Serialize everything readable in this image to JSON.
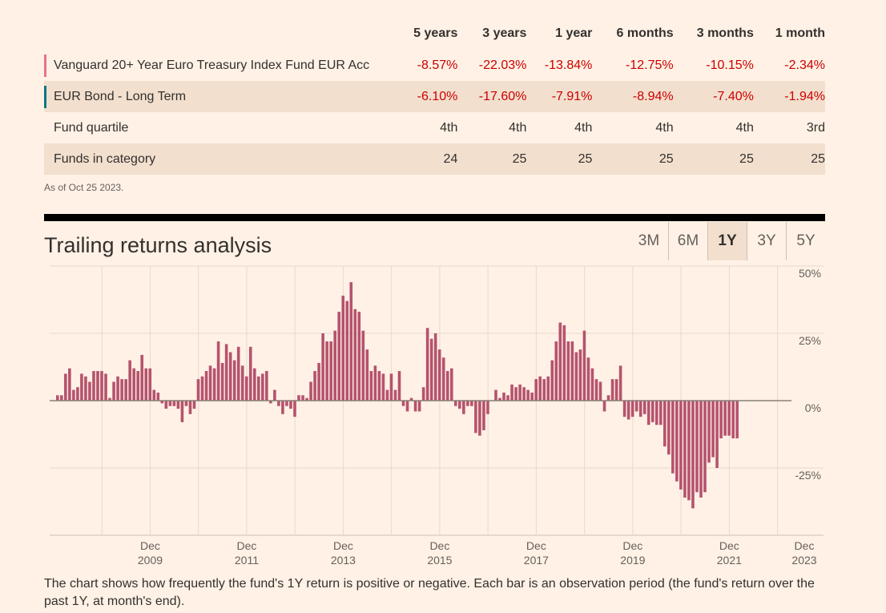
{
  "table": {
    "columns": [
      "5 years",
      "3 years",
      "1 year",
      "6 months",
      "3 months",
      "1 month"
    ],
    "rows": [
      {
        "label": "Vanguard 20+ Year Euro Treasury Index Fund EUR Acc",
        "values": [
          "-8.57%",
          "-22.03%",
          "-13.84%",
          "-12.75%",
          "-10.15%",
          "-2.34%"
        ],
        "marker_color": "#e9708b"
      },
      {
        "label": "EUR Bond - Long Term",
        "values": [
          "-6.10%",
          "-17.60%",
          "-7.91%",
          "-8.94%",
          "-7.40%",
          "-1.94%"
        ],
        "marker_color": "#0f5499"
      },
      {
        "label": "Fund quartile",
        "values": [
          "4th",
          "4th",
          "4th",
          "4th",
          "4th",
          "3rd"
        ]
      },
      {
        "label": "Funds in category",
        "values": [
          "24",
          "25",
          "25",
          "25",
          "25",
          "25"
        ]
      }
    ],
    "as_of": "As of Oct 25 2023."
  },
  "chart_section": {
    "title": "Trailing returns analysis",
    "tabs": [
      {
        "label": "3M",
        "active": false
      },
      {
        "label": "6M",
        "active": false
      },
      {
        "label": "1Y",
        "active": true
      },
      {
        "label": "3Y",
        "active": false
      },
      {
        "label": "5Y",
        "active": false
      }
    ],
    "caption": "The chart shows how frequently the fund's 1Y return is positive or negative. Each bar is an observation period (the fund's return over the past 1Y, at month's end)."
  },
  "chart_data": {
    "type": "bar",
    "title": "Trailing returns analysis",
    "series_name": "",
    "bar_color": "#b5536e",
    "start_month": "2008-01",
    "x_tick_labels": [
      {
        "month": "Dec",
        "year": "2009"
      },
      {
        "month": "Dec",
        "year": "2011"
      },
      {
        "month": "Dec",
        "year": "2013"
      },
      {
        "month": "Dec",
        "year": "2015"
      },
      {
        "month": "Dec",
        "year": "2017"
      },
      {
        "month": "Dec",
        "year": "2019"
      },
      {
        "month": "Dec",
        "year": "2021"
      },
      {
        "month": "Dec",
        "year": "2023"
      }
    ],
    "y_ticks": [
      "50%",
      "25%",
      "0%",
      "-25%"
    ],
    "ylim": [
      -50,
      50
    ],
    "values": [
      2,
      2,
      10,
      12,
      4,
      5,
      10,
      9,
      7,
      11,
      11,
      11,
      10,
      1,
      7,
      9,
      8,
      8,
      15,
      12,
      11,
      17,
      12,
      12,
      4,
      3,
      -1,
      -3,
      -2,
      -2,
      -3,
      -8,
      -2,
      -5,
      -3,
      8,
      9,
      11,
      13,
      12,
      22,
      14,
      21,
      18,
      15,
      20,
      13,
      9,
      20,
      12,
      9,
      10,
      11,
      -1,
      4,
      -2,
      -5,
      -2,
      -3,
      -6,
      2,
      2,
      1,
      7,
      11,
      14,
      25,
      22,
      22,
      26,
      33,
      39,
      37,
      44,
      34,
      33,
      26,
      19,
      11,
      13,
      11,
      10,
      4,
      10,
      4,
      11,
      -2,
      -4,
      1,
      -4,
      -4,
      5,
      27,
      23,
      25,
      19,
      16,
      11,
      12,
      -2,
      -3,
      -5,
      -2,
      -2,
      -12,
      -13,
      -11,
      -5,
      0,
      4,
      1,
      3,
      2,
      6,
      5,
      6,
      5,
      4,
      3,
      8,
      9,
      8,
      9,
      15,
      22,
      29,
      28,
      22,
      22,
      18,
      19,
      26,
      16,
      12,
      8,
      7,
      -4,
      2,
      8,
      8,
      13,
      -6,
      -7,
      -6,
      -4,
      -6,
      -5,
      -9,
      -8,
      -9,
      -9,
      -17,
      -20,
      -27,
      -30,
      -33,
      -36,
      -37,
      -40,
      -34,
      -36,
      -34,
      -23,
      -21,
      -25,
      -14,
      -13,
      -13,
      -14,
      -14
    ]
  }
}
